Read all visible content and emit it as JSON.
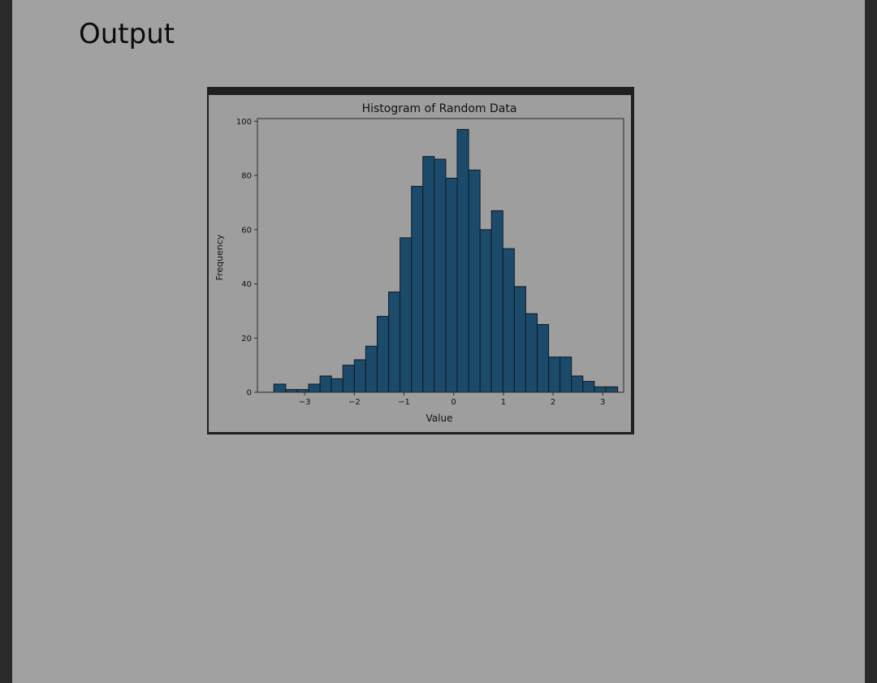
{
  "page": {
    "heading": "Output"
  },
  "colors": {
    "background_outer": "#2a2a2a",
    "panel": "#a1a1a1",
    "bar_fill": "#1c4a6b",
    "bar_edge": "#0d1a24"
  },
  "chart_data": {
    "type": "bar",
    "title": "Histogram of Random Data",
    "xlabel": "Value",
    "ylabel": "Frequency",
    "bin_edges": [
      -3.62,
      -3.38,
      -3.15,
      -2.92,
      -2.69,
      -2.46,
      -2.23,
      -2.0,
      -1.77,
      -1.54,
      -1.31,
      -1.08,
      -0.85,
      -0.62,
      -0.39,
      -0.16,
      0.07,
      0.3,
      0.53,
      0.76,
      0.99,
      1.22,
      1.45,
      1.68,
      1.91,
      2.14,
      2.37,
      2.6,
      2.83,
      3.06
    ],
    "values": [
      3,
      1,
      1,
      3,
      6,
      5,
      10,
      12,
      17,
      28,
      37,
      57,
      76,
      87,
      86,
      79,
      97,
      82,
      60,
      67,
      53,
      39,
      29,
      25,
      13,
      13,
      6,
      4,
      2,
      2
    ],
    "xlim": [
      -3.95,
      3.42
    ],
    "ylim": [
      0,
      101
    ],
    "xticks": [
      -3,
      -2,
      -1,
      0,
      1,
      2,
      3
    ],
    "xtick_labels": [
      "−3",
      "−2",
      "−1",
      "0",
      "1",
      "2",
      "3"
    ],
    "yticks": [
      0,
      20,
      40,
      60,
      80,
      100
    ],
    "ytick_labels": [
      "0",
      "20",
      "40",
      "60",
      "80",
      "100"
    ],
    "grid": false
  }
}
